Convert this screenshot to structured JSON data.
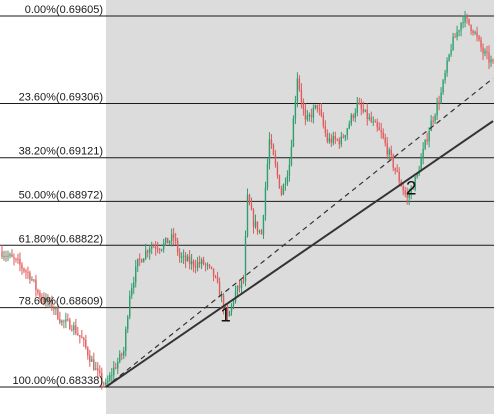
{
  "chart_data": {
    "type": "candlestick",
    "title": "",
    "xlabel": "",
    "ylabel": "",
    "grid": false,
    "ylim": [
      0.68338,
      0.69605
    ],
    "colors": {
      "background": "#ffffff",
      "plot_background": "#dcdcdc",
      "level_line": "#1a1a1a",
      "up_candle": "#2e9e6e",
      "down_candle": "#e05a5a",
      "trendline": "#333333"
    },
    "fib_levels": [
      {
        "label": "0.00%(0.69605)",
        "price": 0.69605
      },
      {
        "label": "23.60%(0.69306)",
        "price": 0.69306
      },
      {
        "label": "38.20%(0.69121)",
        "price": 0.69121
      },
      {
        "label": "50.00%(0.68972)",
        "price": 0.68972
      },
      {
        "label": "61.80%(0.68822)",
        "price": 0.68822
      },
      {
        "label": "78.60%(0.68609)",
        "price": 0.68609
      },
      {
        "label": "100.00%(0.68338)",
        "price": 0.68338
      }
    ],
    "annotations": [
      {
        "text": "1",
        "bar": 112,
        "price": 0.68562
      },
      {
        "text": "2",
        "bar": 205,
        "price": 0.68996
      }
    ],
    "trendlines": [
      {
        "style": "solid",
        "from": {
          "bar": 52,
          "price": 0.68338
        },
        "to": {
          "bar": 246,
          "price": 0.69246
        }
      },
      {
        "style": "dashed",
        "from": {
          "bar": 52,
          "price": 0.68338
        },
        "to": {
          "bar": 246,
          "price": 0.69392
        }
      }
    ],
    "candle_count": 247,
    "close_path": [
      [
        0,
        0.688
      ],
      [
        8,
        0.6876
      ],
      [
        14,
        0.6872
      ],
      [
        18,
        0.6866
      ],
      [
        22,
        0.6863
      ],
      [
        26,
        0.6861
      ],
      [
        30,
        0.6856
      ],
      [
        35,
        0.6855
      ],
      [
        40,
        0.685
      ],
      [
        44,
        0.6844
      ],
      [
        48,
        0.6838
      ],
      [
        52,
        0.6834
      ],
      [
        56,
        0.684
      ],
      [
        61,
        0.6846
      ],
      [
        64,
        0.6866
      ],
      [
        68,
        0.6876
      ],
      [
        74,
        0.6882
      ],
      [
        80,
        0.6882
      ],
      [
        86,
        0.6885
      ],
      [
        89,
        0.6878
      ],
      [
        95,
        0.6876
      ],
      [
        101,
        0.6876
      ],
      [
        106,
        0.6872
      ],
      [
        110,
        0.6864
      ],
      [
        113,
        0.6857
      ],
      [
        117,
        0.6866
      ],
      [
        121,
        0.687
      ],
      [
        123,
        0.6898
      ],
      [
        126,
        0.689
      ],
      [
        130,
        0.6886
      ],
      [
        134,
        0.6918
      ],
      [
        140,
        0.69
      ],
      [
        144,
        0.691
      ],
      [
        148,
        0.694
      ],
      [
        152,
        0.6924
      ],
      [
        158,
        0.693
      ],
      [
        163,
        0.6918
      ],
      [
        170,
        0.6918
      ],
      [
        178,
        0.693
      ],
      [
        183,
        0.6926
      ],
      [
        190,
        0.692
      ],
      [
        197,
        0.6908
      ],
      [
        203,
        0.6898
      ],
      [
        208,
        0.6906
      ],
      [
        214,
        0.6922
      ],
      [
        220,
        0.6934
      ],
      [
        225,
        0.695
      ],
      [
        231,
        0.696
      ],
      [
        236,
        0.6956
      ],
      [
        241,
        0.6948
      ],
      [
        246,
        0.6944
      ]
    ]
  }
}
